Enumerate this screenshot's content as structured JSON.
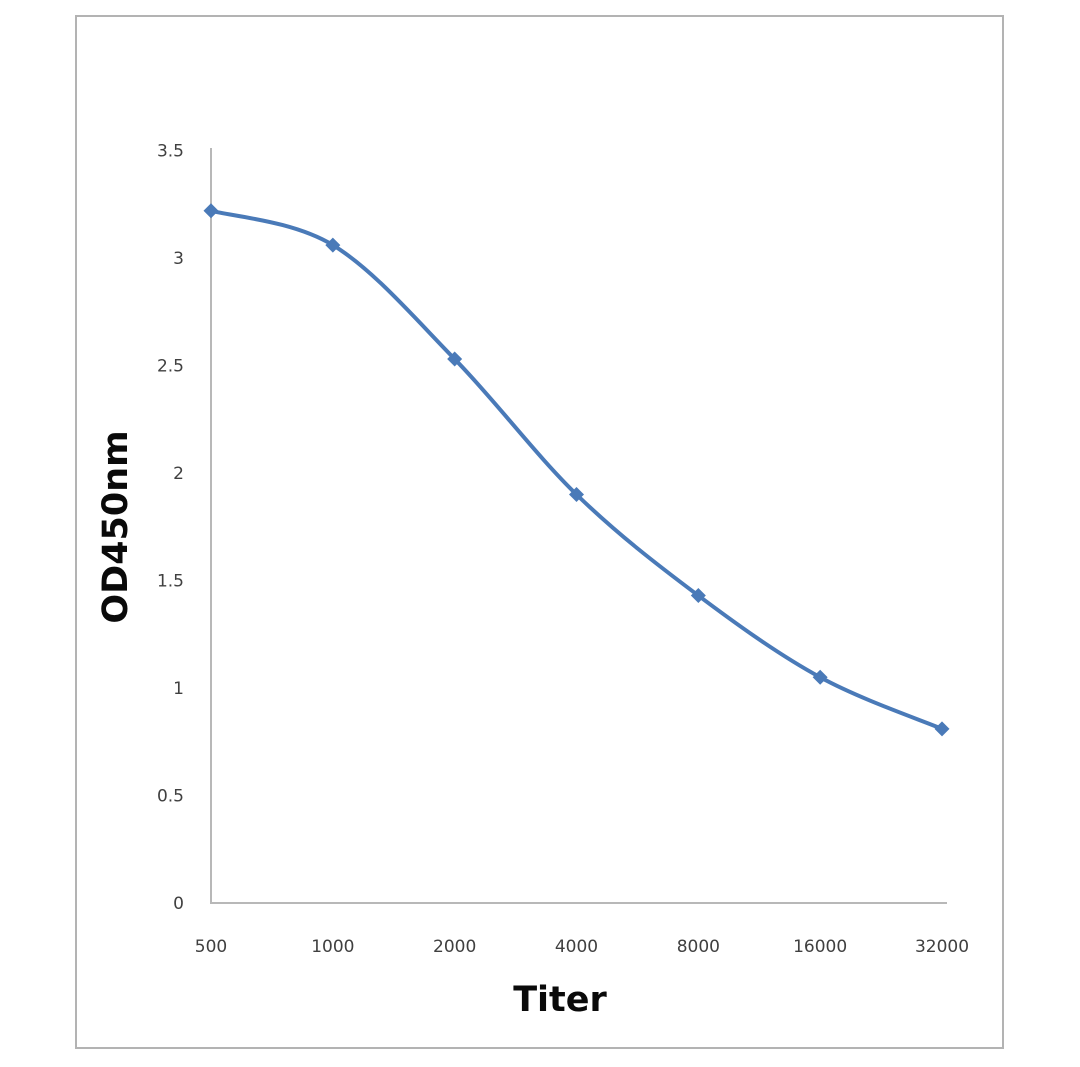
{
  "chart_data": {
    "type": "line",
    "title": "",
    "xlabel": "Titer",
    "ylabel": "OD450nm",
    "categories": [
      "500",
      "1000",
      "2000",
      "4000",
      "8000",
      "16000",
      "32000"
    ],
    "series": [
      {
        "name": "OD450nm",
        "values": [
          3.22,
          3.06,
          2.53,
          1.9,
          1.43,
          1.05,
          0.81
        ],
        "color": "#4a7ab8",
        "marker": "diamond",
        "smooth": true
      }
    ],
    "ylim": [
      0,
      3.5
    ],
    "yticks": [
      "0",
      "0.5",
      "1",
      "1.5",
      "2",
      "2.5",
      "3",
      "3.5"
    ],
    "ytick_values": [
      0,
      0.5,
      1,
      1.5,
      2,
      2.5,
      3,
      3.5
    ],
    "grid": false,
    "legend": "none"
  },
  "colors": {
    "line": "#4a7ab8",
    "axis": "#b8b8b8",
    "frame": "#b3b3b3",
    "tick_text": "#404040",
    "title_text": "#0a0a0a"
  }
}
